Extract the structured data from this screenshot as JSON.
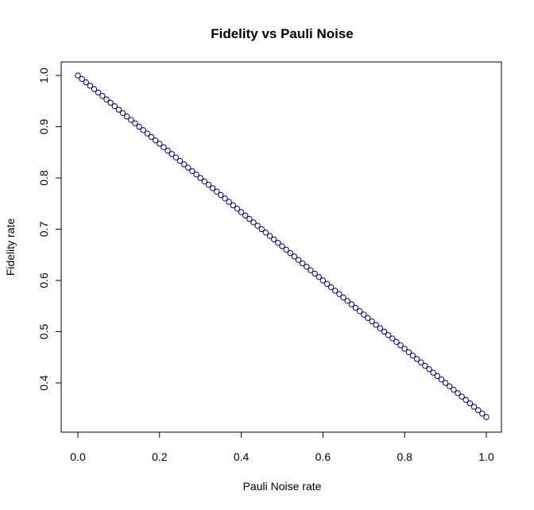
{
  "chart_data": {
    "type": "scatter",
    "title": "Fidelity vs Pauli Noise",
    "xlabel": "Pauli Noise rate",
    "ylabel": "Fidelity rate",
    "xlim": [
      0,
      1
    ],
    "ylim": [
      0.3333,
      1.0
    ],
    "xticks": [
      "0.0",
      "0.2",
      "0.4",
      "0.6",
      "0.8",
      "1.0"
    ],
    "xtick_values": [
      0,
      0.2,
      0.4,
      0.6,
      0.8,
      1.0
    ],
    "yticks": [
      "0.4",
      "0.5",
      "0.6",
      "0.7",
      "0.8",
      "0.9",
      "1.0"
    ],
    "ytick_values": [
      0.4,
      0.5,
      0.6,
      0.7,
      0.8,
      0.9,
      1.0
    ],
    "grid": false,
    "legend": "none",
    "point_color": "#00008b",
    "series": [
      {
        "x": [
          0.0,
          0.01,
          0.02,
          0.03,
          0.04,
          0.05,
          0.06,
          0.07,
          0.08,
          0.09,
          0.1,
          0.11,
          0.12,
          0.13,
          0.14,
          0.15,
          0.16,
          0.17,
          0.18,
          0.19,
          0.2,
          0.21,
          0.22,
          0.23,
          0.24,
          0.25,
          0.26,
          0.27,
          0.28,
          0.29,
          0.3,
          0.31,
          0.32,
          0.33,
          0.34,
          0.35,
          0.36,
          0.37,
          0.38,
          0.39,
          0.4,
          0.41,
          0.42,
          0.43,
          0.44,
          0.45,
          0.46,
          0.47,
          0.48,
          0.49,
          0.5,
          0.51,
          0.52,
          0.53,
          0.54,
          0.55,
          0.56,
          0.57,
          0.58,
          0.59,
          0.6,
          0.61,
          0.62,
          0.63,
          0.64,
          0.65,
          0.66,
          0.67,
          0.68,
          0.69,
          0.7,
          0.71,
          0.72,
          0.73,
          0.74,
          0.75,
          0.76,
          0.77,
          0.78,
          0.79,
          0.8,
          0.81,
          0.82,
          0.83,
          0.84,
          0.85,
          0.86,
          0.87,
          0.88,
          0.89,
          0.9,
          0.91,
          0.92,
          0.93,
          0.94,
          0.95,
          0.96,
          0.97,
          0.98,
          0.99,
          1.0
        ],
        "y": [
          1.0,
          0.9933,
          0.9867,
          0.98,
          0.9733,
          0.9667,
          0.96,
          0.9533,
          0.9467,
          0.94,
          0.9333,
          0.9267,
          0.92,
          0.9133,
          0.9067,
          0.9,
          0.8933,
          0.8867,
          0.88,
          0.8733,
          0.8667,
          0.86,
          0.8533,
          0.8467,
          0.84,
          0.8333,
          0.8267,
          0.82,
          0.8133,
          0.8067,
          0.8,
          0.7933,
          0.7867,
          0.78,
          0.7733,
          0.7667,
          0.76,
          0.7533,
          0.7467,
          0.74,
          0.7333,
          0.7267,
          0.72,
          0.7133,
          0.7067,
          0.7,
          0.6933,
          0.6867,
          0.68,
          0.6733,
          0.6667,
          0.66,
          0.6533,
          0.6467,
          0.64,
          0.6333,
          0.6267,
          0.62,
          0.6133,
          0.6067,
          0.6,
          0.5933,
          0.5867,
          0.58,
          0.5733,
          0.5667,
          0.56,
          0.5533,
          0.5467,
          0.54,
          0.5333,
          0.5267,
          0.52,
          0.5133,
          0.5067,
          0.5,
          0.4933,
          0.4867,
          0.48,
          0.4733,
          0.4667,
          0.46,
          0.4533,
          0.4467,
          0.44,
          0.4333,
          0.4267,
          0.42,
          0.4133,
          0.4067,
          0.4,
          0.3933,
          0.3867,
          0.38,
          0.3733,
          0.3667,
          0.36,
          0.3533,
          0.3467,
          0.34,
          0.3333
        ]
      }
    ]
  }
}
